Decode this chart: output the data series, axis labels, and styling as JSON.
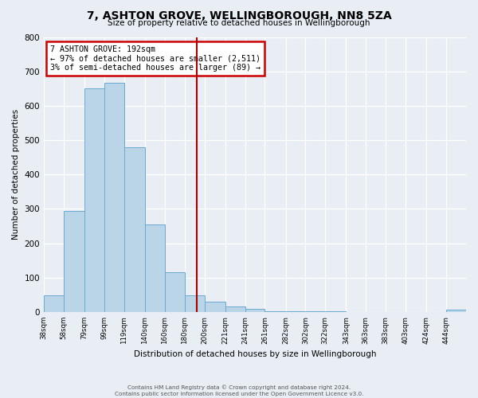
{
  "title": "7, ASHTON GROVE, WELLINGBOROUGH, NN8 5ZA",
  "subtitle": "Size of property relative to detached houses in Wellingborough",
  "xlabel": "Distribution of detached houses by size in Wellingborough",
  "ylabel": "Number of detached properties",
  "footer_line1": "Contains HM Land Registry data © Crown copyright and database right 2024.",
  "footer_line2": "Contains public sector information licensed under the Open Government Licence v3.0.",
  "bin_labels": [
    "38sqm",
    "58sqm",
    "79sqm",
    "99sqm",
    "119sqm",
    "140sqm",
    "160sqm",
    "180sqm",
    "200sqm",
    "221sqm",
    "241sqm",
    "261sqm",
    "282sqm",
    "302sqm",
    "322sqm",
    "343sqm",
    "363sqm",
    "383sqm",
    "403sqm",
    "424sqm",
    "444sqm"
  ],
  "bin_edges": [
    38,
    58,
    79,
    99,
    119,
    140,
    160,
    180,
    200,
    221,
    241,
    261,
    282,
    302,
    322,
    343,
    363,
    383,
    403,
    424,
    444,
    464
  ],
  "bar_heights": [
    48,
    293,
    651,
    666,
    479,
    254,
    115,
    48,
    29,
    15,
    8,
    3,
    2,
    1,
    1,
    0,
    0,
    0,
    0,
    0,
    7
  ],
  "bar_color": "#bad4e8",
  "bar_edge_color": "#6aaad4",
  "property_size": 192,
  "vline_color": "#aa0000",
  "annotation_title": "7 ASHTON GROVE: 192sqm",
  "annotation_line1": "← 97% of detached houses are smaller (2,511)",
  "annotation_line2": "3% of semi-detached houses are larger (89) →",
  "annotation_box_color": "#cc0000",
  "ylim": [
    0,
    800
  ],
  "yticks": [
    0,
    100,
    200,
    300,
    400,
    500,
    600,
    700,
    800
  ],
  "background_color": "#e8eef4",
  "plot_background": "#e8eef4"
}
